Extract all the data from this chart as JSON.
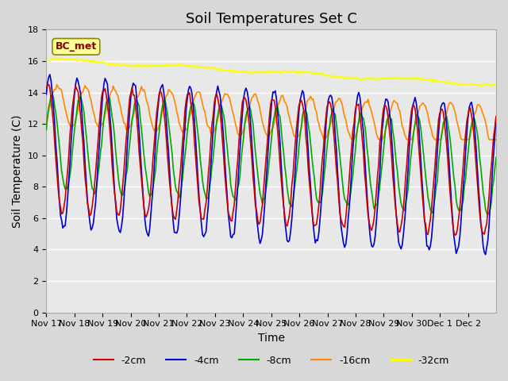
{
  "title": "Soil Temperatures Set C",
  "xlabel": "Time",
  "ylabel": "Soil Temperature (C)",
  "ylim": [
    0,
    18
  ],
  "yticks": [
    0,
    2,
    4,
    6,
    8,
    10,
    12,
    14,
    16,
    18
  ],
  "xtick_labels": [
    "Nov 17",
    "Nov 18",
    "Nov 19",
    "Nov 20",
    "Nov 21",
    "Nov 22",
    "Nov 23",
    "Nov 24",
    "Nov 25",
    "Nov 26",
    "Nov 27",
    "Nov 28",
    "Nov 29",
    "Nov 30",
    "Dec 1",
    "Dec 2"
  ],
  "legend_labels": [
    "-2cm",
    "-4cm",
    "-8cm",
    "-16cm",
    "-32cm"
  ],
  "legend_colors": [
    "#cc0000",
    "#0000cc",
    "#00aa00",
    "#ff8800",
    "#ffff00"
  ],
  "line_widths": [
    1.2,
    1.2,
    1.2,
    1.2,
    1.5
  ],
  "annotation_text": "BC_met",
  "annotation_box_color": "#ffff99",
  "annotation_text_color": "#880000",
  "background_color": "#e8e8e8",
  "title_fontsize": 13,
  "label_fontsize": 10,
  "tick_fontsize": 8,
  "n_days": 16
}
